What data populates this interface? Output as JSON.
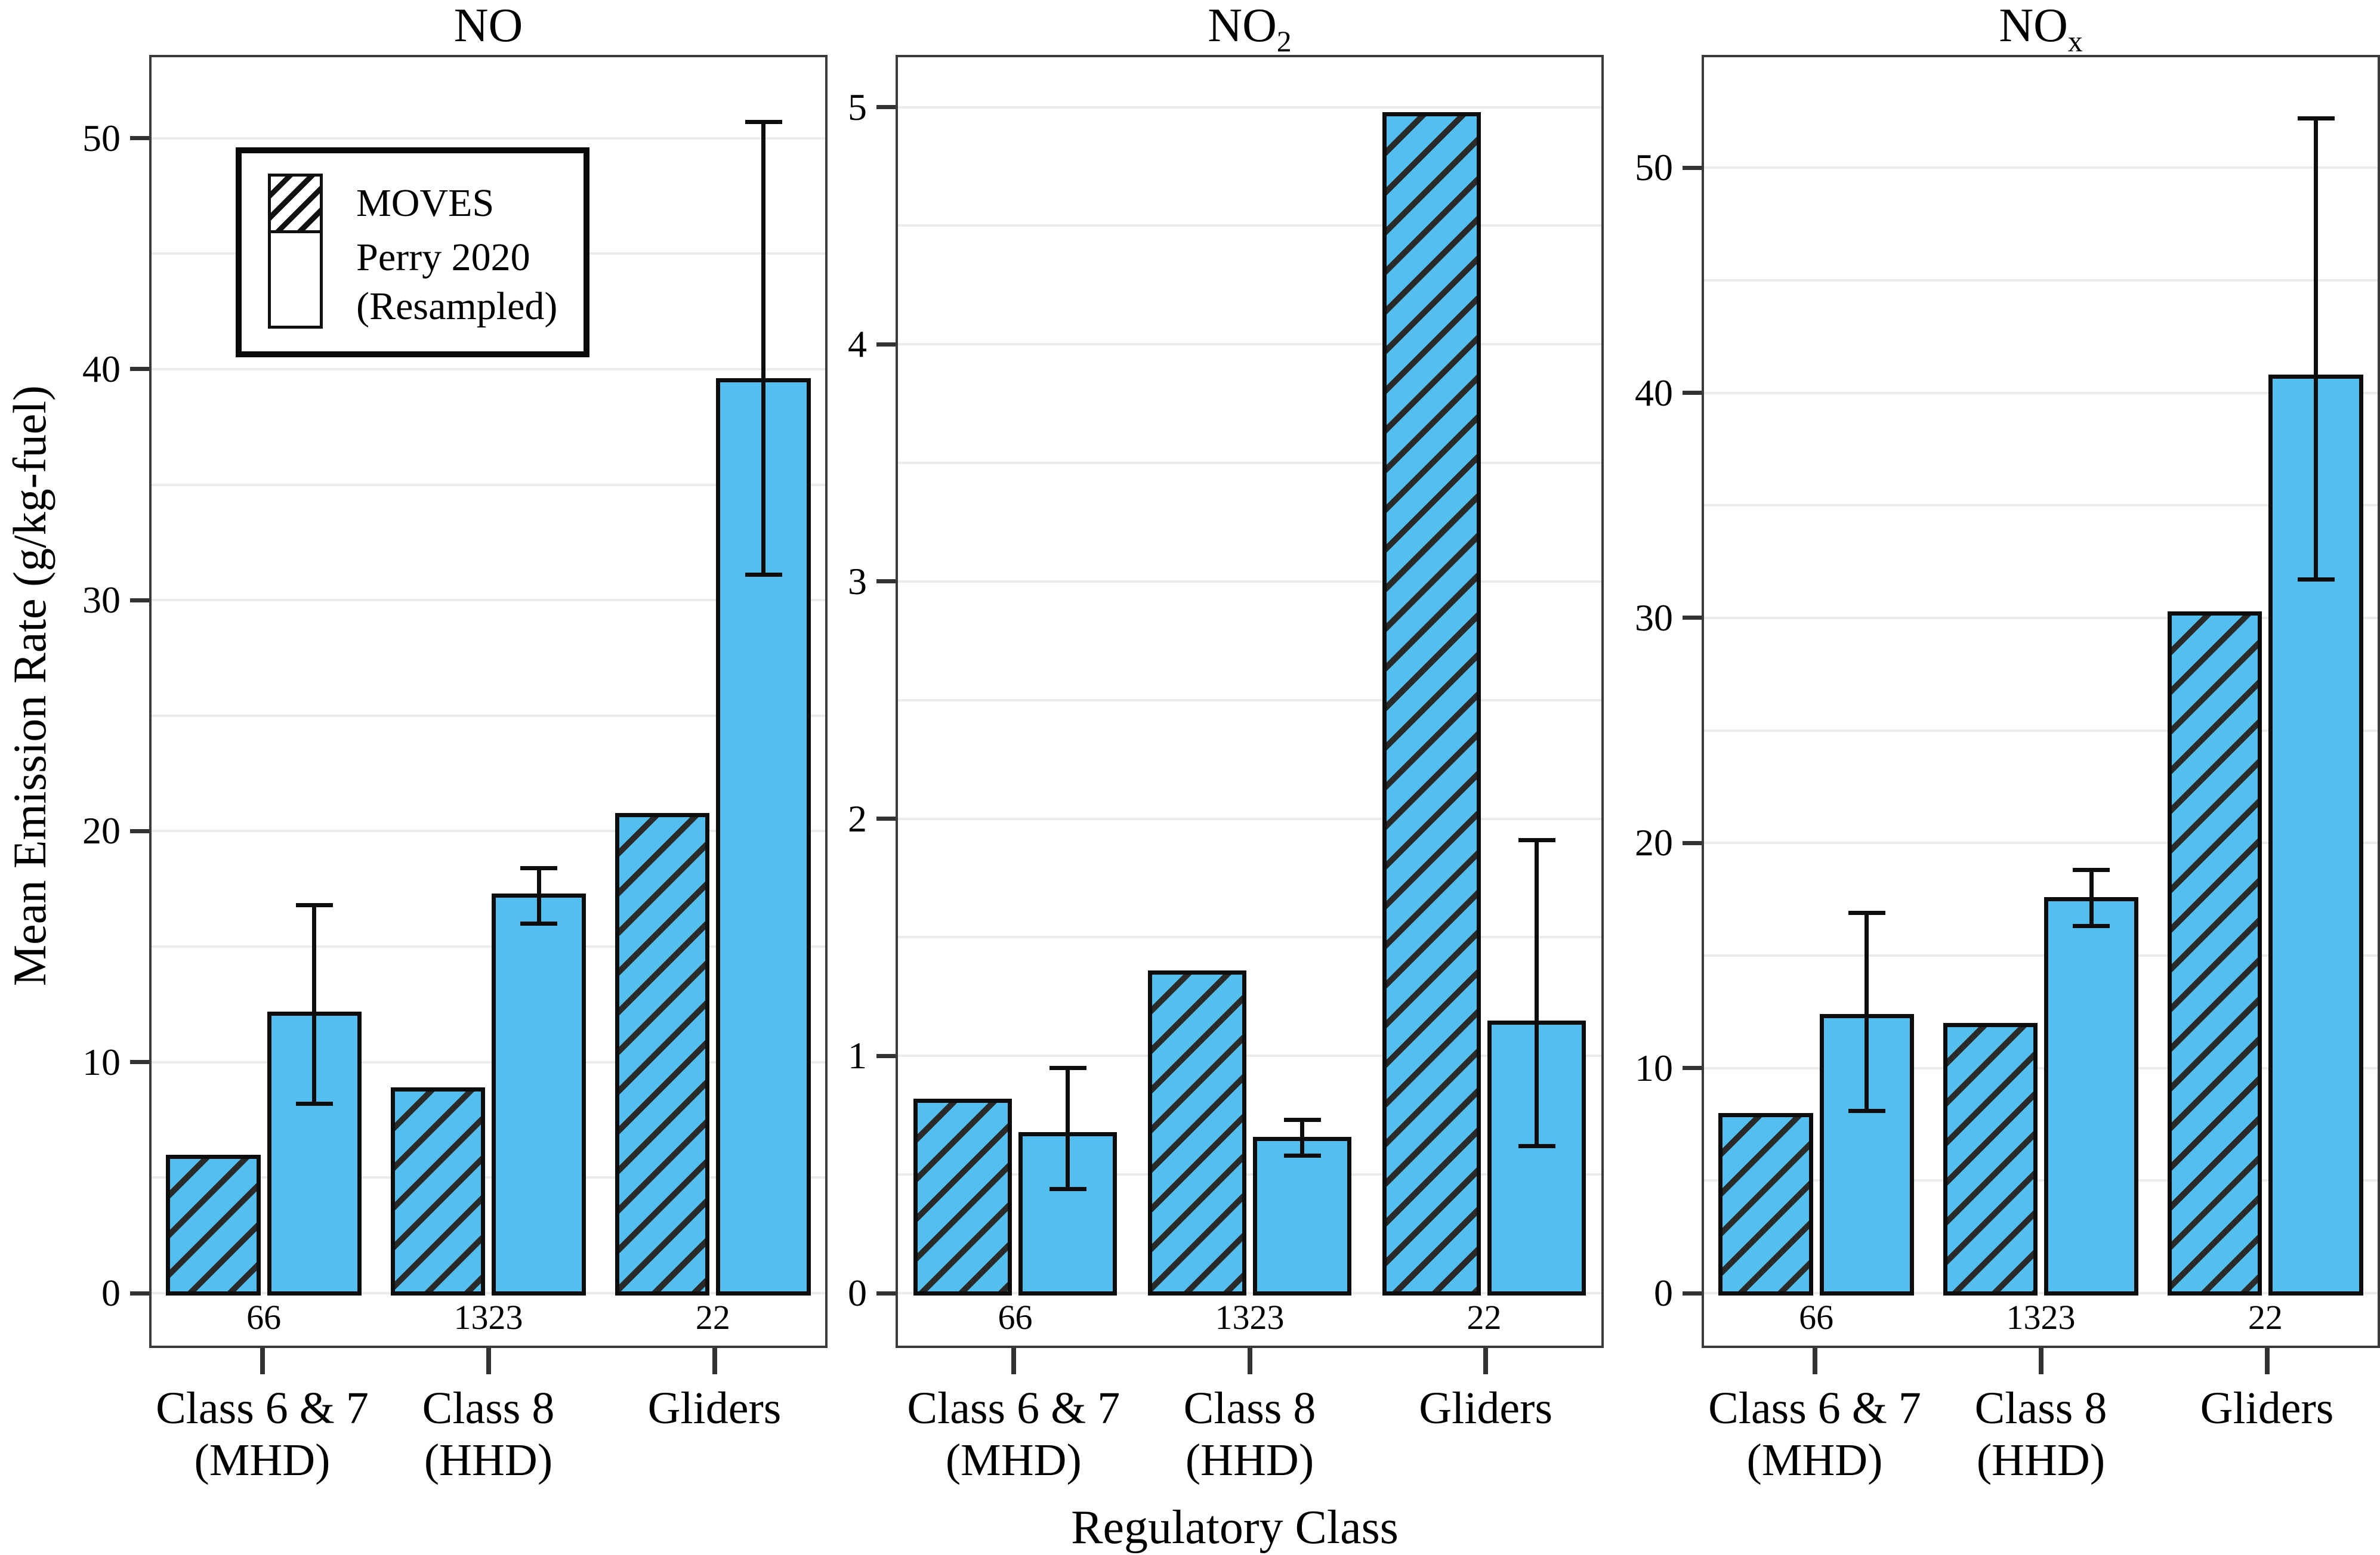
{
  "figure": {
    "y_axis_label": "Mean Emission Rate (g/kg-fuel)",
    "x_axis_label": "Regulatory Class",
    "colors": {
      "bar_fill": "#52BFEE",
      "bar_border": "#0d0d0d",
      "hatch_line": "#2a2a2a",
      "gridline": "#ebebeb",
      "panel_border": "#3a3a3a",
      "background": "#ffffff"
    }
  },
  "legend": {
    "moves_label": "MOVES",
    "perry_label_line1": "Perry 2020",
    "perry_label_line2": "(Resampled)",
    "position": "top-left of first panel"
  },
  "chart_data": [
    {
      "type": "bar",
      "title_base": "NO",
      "title_sub": "",
      "xlabel": "Regulatory Class",
      "ylabel": "Mean Emission Rate (g/kg-fuel)",
      "categories": [
        "Class 6 & 7 (MHD)",
        "Class 8 (HHD)",
        "Gliders"
      ],
      "category_lines": [
        [
          "Class 6 & 7",
          "(MHD)"
        ],
        [
          "Class 8",
          "(HHD)"
        ],
        [
          "Gliders"
        ]
      ],
      "counts": [
        "66",
        "1323",
        "22"
      ],
      "series": [
        {
          "name": "MOVES",
          "values": [
            6.0,
            8.9,
            20.8
          ]
        },
        {
          "name": "Perry 2020 (Resampled)",
          "values": [
            12.2,
            17.3,
            39.6
          ],
          "error_low": [
            8.2,
            16.0,
            31.1
          ],
          "error_high": [
            16.8,
            18.4,
            50.7
          ]
        }
      ],
      "ylim": [
        0,
        53.4
      ],
      "yticks": [
        "0",
        "10",
        "20",
        "30",
        "40",
        "50"
      ],
      "grid_step": 5,
      "grid": true,
      "legend_position": "top-left"
    },
    {
      "type": "bar",
      "title_base": "NO",
      "title_sub": "2",
      "xlabel": "Regulatory Class",
      "ylabel": "Mean Emission Rate (g/kg-fuel)",
      "categories": [
        "Class 6 & 7 (MHD)",
        "Class 8 (HHD)",
        "Gliders"
      ],
      "category_lines": [
        [
          "Class 6 & 7",
          "(MHD)"
        ],
        [
          "Class 8",
          "(HHD)"
        ],
        [
          "Gliders"
        ]
      ],
      "counts": [
        "66",
        "1323",
        "22"
      ],
      "series": [
        {
          "name": "MOVES",
          "values": [
            0.82,
            1.36,
            4.98
          ]
        },
        {
          "name": "Perry 2020 (Resampled)",
          "values": [
            0.68,
            0.66,
            1.15
          ],
          "error_low": [
            0.44,
            0.58,
            0.62
          ],
          "error_high": [
            0.95,
            0.73,
            1.91
          ]
        }
      ],
      "ylim": [
        0,
        5.2
      ],
      "yticks": [
        "0",
        "1",
        "2",
        "3",
        "4",
        "5"
      ],
      "grid_step": 0.5,
      "grid": true,
      "legend_position": "none"
    },
    {
      "type": "bar",
      "title_base": "NO",
      "title_sub": "x",
      "xlabel": "Regulatory Class",
      "ylabel": "Mean Emission Rate (g/kg-fuel)",
      "categories": [
        "Class 6 & 7 (MHD)",
        "Class 8 (HHD)",
        "Gliders"
      ],
      "category_lines": [
        [
          "Class 6 & 7",
          "(MHD)"
        ],
        [
          "Class 8",
          "(HHD)"
        ],
        [
          "Gliders"
        ]
      ],
      "counts": [
        "66",
        "1323",
        "22"
      ],
      "series": [
        {
          "name": "MOVES",
          "values": [
            8.0,
            12.0,
            30.3
          ]
        },
        {
          "name": "Perry 2020 (Resampled)",
          "values": [
            12.4,
            17.6,
            40.8
          ],
          "error_low": [
            8.1,
            16.3,
            31.7
          ],
          "error_high": [
            16.9,
            18.8,
            52.2
          ]
        }
      ],
      "ylim": [
        0,
        54.8
      ],
      "yticks": [
        "0",
        "10",
        "20",
        "30",
        "40",
        "50"
      ],
      "grid_step": 5,
      "grid": true,
      "legend_position": "none"
    }
  ]
}
